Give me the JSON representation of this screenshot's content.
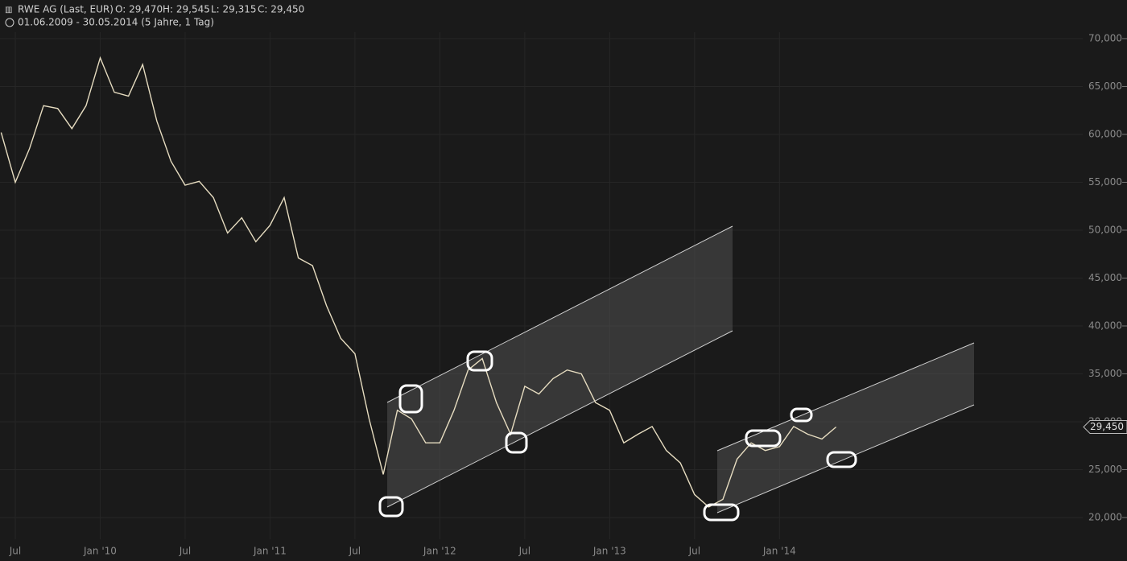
{
  "header": {
    "title": "RWE AG (Last, EUR)",
    "open": "O: 29,470",
    "high": "H: 29,545",
    "low": "L: 29,315",
    "close": "C: 29,450",
    "range": "01.06.2009 - 30.05.2014 (5 Jahre, 1 Tag)"
  },
  "chart_data": {
    "type": "line",
    "x": [
      "2009-06",
      "2009-07",
      "2009-08",
      "2009-09",
      "2009-10",
      "2009-11",
      "2009-12",
      "2010-01",
      "2010-02",
      "2010-03",
      "2010-04",
      "2010-05",
      "2010-06",
      "2010-07",
      "2010-08",
      "2010-09",
      "2010-10",
      "2010-11",
      "2010-12",
      "2011-01",
      "2011-02",
      "2011-03",
      "2011-04",
      "2011-05",
      "2011-06",
      "2011-07",
      "2011-08",
      "2011-09",
      "2011-10",
      "2011-11",
      "2011-12",
      "2012-01",
      "2012-02",
      "2012-03",
      "2012-04",
      "2012-05",
      "2012-06",
      "2012-07",
      "2012-08",
      "2012-09",
      "2012-10",
      "2012-11",
      "2012-12",
      "2013-01",
      "2013-02",
      "2013-03",
      "2013-04",
      "2013-05",
      "2013-06",
      "2013-07",
      "2013-08",
      "2013-09",
      "2013-10",
      "2013-11",
      "2013-12",
      "2014-01",
      "2014-02",
      "2014-03",
      "2014-04",
      "2014-05"
    ],
    "series": [
      {
        "color": "#e6dcc0",
        "values": [
          60200,
          55000,
          58500,
          63000,
          62700,
          60600,
          63000,
          68000,
          64400,
          64000,
          67300,
          61400,
          57200,
          54700,
          55100,
          53400,
          49700,
          51300,
          48800,
          50500,
          53400,
          47100,
          46300,
          42100,
          38700,
          37100,
          30300,
          24500,
          31200,
          30300,
          27800,
          27800,
          31200,
          35400,
          36600,
          32000,
          28700,
          33700,
          32900,
          34500,
          35400,
          35000,
          32000,
          31200,
          27800,
          28700,
          29500,
          27000,
          25700,
          22400,
          21100,
          21900,
          26100,
          27800,
          27000,
          27400,
          29500,
          28700,
          28200,
          29450
        ]
      }
    ],
    "ylim": [
      17730,
      74030
    ],
    "yticks": [
      {
        "value": 20000,
        "label": "20,000"
      },
      {
        "value": 25000,
        "label": "25,000"
      },
      {
        "value": 30000,
        "label": "30,000"
      },
      {
        "value": 35000,
        "label": "35,000"
      },
      {
        "value": 40000,
        "label": "40,000"
      },
      {
        "value": 45000,
        "label": "45,000"
      },
      {
        "value": 50000,
        "label": "50,000"
      },
      {
        "value": 55000,
        "label": "55,000"
      },
      {
        "value": 60000,
        "label": "60,000"
      },
      {
        "value": 65000,
        "label": "65,000"
      },
      {
        "value": 70000,
        "label": "70,000"
      }
    ],
    "xticks": [
      {
        "value": "2009-07",
        "label": "Jul"
      },
      {
        "value": "2010-01",
        "label": "Jan '10"
      },
      {
        "value": "2010-07",
        "label": "Jul"
      },
      {
        "value": "2011-01",
        "label": "Jan '11"
      },
      {
        "value": "2011-07",
        "label": "Jul"
      },
      {
        "value": "2012-01",
        "label": "Jan '12"
      },
      {
        "value": "2012-07",
        "label": "Jul"
      },
      {
        "value": "2013-01",
        "label": "Jan '13"
      },
      {
        "value": "2013-07",
        "label": "Jul"
      },
      {
        "value": "2014-01",
        "label": "Jan '14"
      }
    ],
    "last_price": {
      "value": 29450,
      "label": "29,450"
    },
    "grid": true
  }
}
